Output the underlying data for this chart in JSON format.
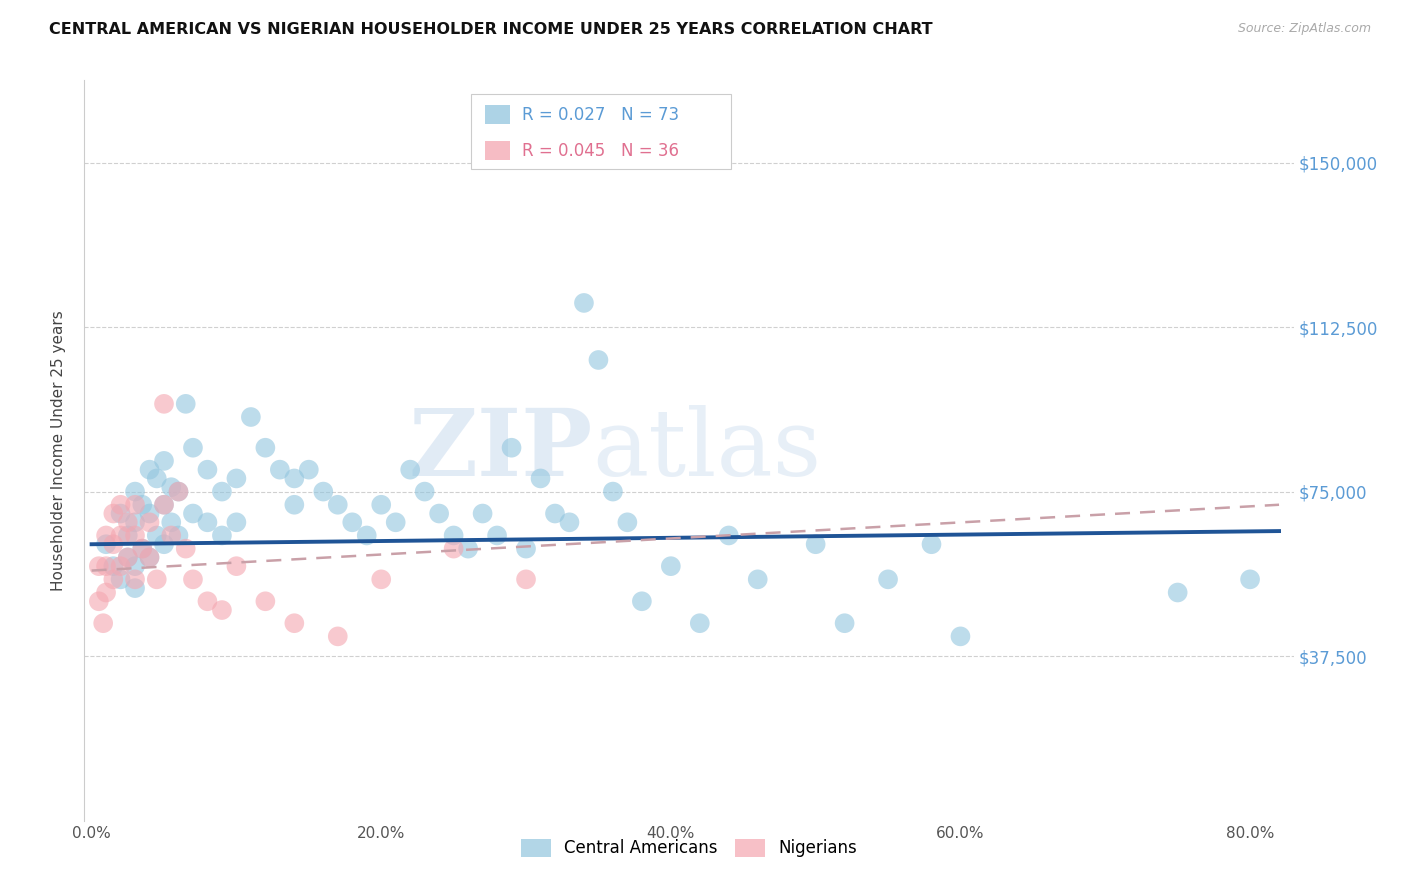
{
  "title": "CENTRAL AMERICAN VS NIGERIAN HOUSEHOLDER INCOME UNDER 25 YEARS CORRELATION CHART",
  "source": "Source: ZipAtlas.com",
  "ylabel": "Householder Income Under 25 years",
  "xlabel_ticks": [
    "0.0%",
    "20.0%",
    "40.0%",
    "60.0%",
    "80.0%"
  ],
  "xlabel_vals": [
    0.0,
    0.2,
    0.4,
    0.6,
    0.8
  ],
  "ytick_labels": [
    "$37,500",
    "$75,000",
    "$112,500",
    "$150,000"
  ],
  "ytick_vals": [
    37500,
    75000,
    112500,
    150000
  ],
  "ylim": [
    0,
    168750
  ],
  "xlim": [
    -0.005,
    0.83
  ],
  "R_blue": 0.027,
  "N_blue": 73,
  "R_pink": 0.045,
  "N_pink": 36,
  "legend_label_blue": "Central Americans",
  "legend_label_pink": "Nigerians",
  "blue_color": "#92c5de",
  "pink_color": "#f4a6b0",
  "trendline_blue_color": "#1f5496",
  "trendline_pink_color": "#c9a0a8",
  "watermark_zip_color": "#c5d8ed",
  "watermark_atlas_color": "#c5d8ed",
  "blue_scatter_x": [
    0.01,
    0.015,
    0.02,
    0.02,
    0.025,
    0.025,
    0.03,
    0.03,
    0.03,
    0.03,
    0.035,
    0.035,
    0.04,
    0.04,
    0.04,
    0.045,
    0.045,
    0.05,
    0.05,
    0.05,
    0.055,
    0.055,
    0.06,
    0.06,
    0.065,
    0.07,
    0.07,
    0.08,
    0.08,
    0.09,
    0.09,
    0.1,
    0.1,
    0.11,
    0.12,
    0.13,
    0.14,
    0.14,
    0.15,
    0.16,
    0.17,
    0.18,
    0.19,
    0.2,
    0.21,
    0.22,
    0.23,
    0.24,
    0.25,
    0.26,
    0.27,
    0.28,
    0.29,
    0.3,
    0.31,
    0.32,
    0.33,
    0.34,
    0.35,
    0.36,
    0.37,
    0.38,
    0.4,
    0.42,
    0.44,
    0.46,
    0.5,
    0.52,
    0.55,
    0.58,
    0.6,
    0.75,
    0.8
  ],
  "blue_scatter_y": [
    63000,
    58000,
    70000,
    55000,
    65000,
    60000,
    75000,
    68000,
    58000,
    53000,
    72000,
    62000,
    80000,
    70000,
    60000,
    78000,
    65000,
    82000,
    72000,
    63000,
    76000,
    68000,
    75000,
    65000,
    95000,
    85000,
    70000,
    80000,
    68000,
    75000,
    65000,
    78000,
    68000,
    92000,
    85000,
    80000,
    78000,
    72000,
    80000,
    75000,
    72000,
    68000,
    65000,
    72000,
    68000,
    80000,
    75000,
    70000,
    65000,
    62000,
    70000,
    65000,
    85000,
    62000,
    78000,
    70000,
    68000,
    118000,
    105000,
    75000,
    68000,
    50000,
    58000,
    45000,
    65000,
    55000,
    63000,
    45000,
    55000,
    63000,
    42000,
    52000,
    55000
  ],
  "pink_scatter_x": [
    0.005,
    0.005,
    0.008,
    0.01,
    0.01,
    0.01,
    0.015,
    0.015,
    0.015,
    0.02,
    0.02,
    0.02,
    0.025,
    0.025,
    0.03,
    0.03,
    0.03,
    0.035,
    0.04,
    0.04,
    0.045,
    0.05,
    0.05,
    0.055,
    0.06,
    0.065,
    0.07,
    0.08,
    0.09,
    0.1,
    0.12,
    0.14,
    0.17,
    0.2,
    0.25,
    0.3
  ],
  "pink_scatter_y": [
    58000,
    50000,
    45000,
    65000,
    58000,
    52000,
    70000,
    63000,
    55000,
    72000,
    65000,
    58000,
    68000,
    60000,
    72000,
    65000,
    55000,
    62000,
    68000,
    60000,
    55000,
    95000,
    72000,
    65000,
    75000,
    62000,
    55000,
    50000,
    48000,
    58000,
    50000,
    45000,
    42000,
    55000,
    62000,
    55000
  ],
  "blue_trend_x0": 0.0,
  "blue_trend_x1": 0.82,
  "blue_trend_y0": 63000,
  "blue_trend_y1": 66000,
  "pink_trend_x0": 0.0,
  "pink_trend_x1": 0.82,
  "pink_trend_y0": 57000,
  "pink_trend_y1": 72000
}
